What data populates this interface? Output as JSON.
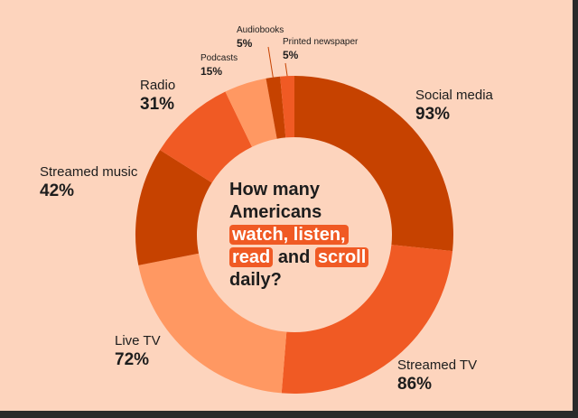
{
  "colors": {
    "background": "#fdd4bd",
    "dark": "#c64200",
    "mid": "#f05a24",
    "light": "#ff9862",
    "highlight": "#f05a24"
  },
  "question": {
    "line1": "How many",
    "line2": "Americans",
    "hl1": "watch, listen,",
    "hl2": "read",
    "and": "and",
    "hl3": "scroll",
    "line5": "daily?"
  },
  "chart_data": {
    "type": "pie",
    "donut": true,
    "start": "top, clockwise",
    "categories": [
      "Social media",
      "Streamed TV",
      "Live TV",
      "Streamed music",
      "Radio",
      "Podcasts",
      "Audiobooks",
      "Printed newspaper"
    ],
    "values": [
      93,
      86,
      72,
      42,
      31,
      15,
      5,
      5
    ],
    "value_labels": [
      "93%",
      "86%",
      "72%",
      "42%",
      "31%",
      "15%",
      "5%",
      "5%"
    ],
    "slice_colors": [
      "#c64200",
      "#f05a24",
      "#ff9862",
      "#c64200",
      "#f05a24",
      "#ff9862",
      "#c64200",
      "#f05a24"
    ]
  }
}
